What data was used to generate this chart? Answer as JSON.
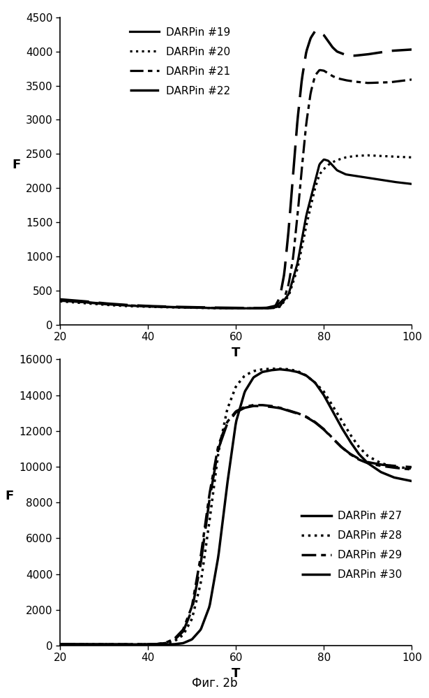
{
  "top_chart": {
    "xlabel": "T",
    "ylabel": "F",
    "xlim": [
      20,
      100
    ],
    "ylim": [
      0,
      4500
    ],
    "yticks": [
      0,
      500,
      1000,
      1500,
      2000,
      2500,
      3000,
      3500,
      4000,
      4500
    ],
    "xticks": [
      20,
      40,
      60,
      80,
      100
    ],
    "series": [
      {
        "label": "DARPin #19",
        "linestyle": "solid",
        "linewidth": 2.3,
        "color": "#000000",
        "points": [
          [
            20,
            350
          ],
          [
            25,
            330
          ],
          [
            30,
            300
          ],
          [
            35,
            280
          ],
          [
            40,
            265
          ],
          [
            45,
            255
          ],
          [
            50,
            248
          ],
          [
            55,
            242
          ],
          [
            60,
            238
          ],
          [
            65,
            238
          ],
          [
            68,
            240
          ],
          [
            70,
            270
          ],
          [
            72,
            450
          ],
          [
            74,
            900
          ],
          [
            76,
            1600
          ],
          [
            78,
            2100
          ],
          [
            79,
            2350
          ],
          [
            80,
            2420
          ],
          [
            81,
            2400
          ],
          [
            82,
            2330
          ],
          [
            83,
            2260
          ],
          [
            85,
            2200
          ],
          [
            87,
            2180
          ],
          [
            90,
            2150
          ],
          [
            93,
            2120
          ],
          [
            96,
            2090
          ],
          [
            100,
            2060
          ]
        ]
      },
      {
        "label": "DARPin #20",
        "linestyle": "dotted",
        "linewidth": 2.3,
        "color": "#000000",
        "points": [
          [
            20,
            340
          ],
          [
            25,
            315
          ],
          [
            30,
            290
          ],
          [
            35,
            270
          ],
          [
            40,
            260
          ],
          [
            45,
            252
          ],
          [
            50,
            246
          ],
          [
            55,
            240
          ],
          [
            60,
            237
          ],
          [
            65,
            237
          ],
          [
            68,
            238
          ],
          [
            70,
            260
          ],
          [
            72,
            420
          ],
          [
            74,
            820
          ],
          [
            76,
            1450
          ],
          [
            78,
            2000
          ],
          [
            79,
            2200
          ],
          [
            80,
            2280
          ],
          [
            81,
            2340
          ],
          [
            82,
            2380
          ],
          [
            83,
            2410
          ],
          [
            85,
            2450
          ],
          [
            87,
            2470
          ],
          [
            90,
            2480
          ],
          [
            93,
            2470
          ],
          [
            96,
            2460
          ],
          [
            100,
            2450
          ]
        ]
      },
      {
        "label": "DARPin #21",
        "linestyle": "custom_dashdot",
        "linewidth": 2.3,
        "color": "#000000",
        "dash_pattern": [
          6,
          2,
          2,
          2
        ],
        "points": [
          [
            20,
            360
          ],
          [
            25,
            335
          ],
          [
            30,
            305
          ],
          [
            35,
            284
          ],
          [
            40,
            268
          ],
          [
            45,
            258
          ],
          [
            50,
            250
          ],
          [
            55,
            244
          ],
          [
            60,
            240
          ],
          [
            65,
            238
          ],
          [
            67,
            240
          ],
          [
            69,
            260
          ],
          [
            71,
            380
          ],
          [
            72,
            600
          ],
          [
            73,
            980
          ],
          [
            74,
            1600
          ],
          [
            75,
            2300
          ],
          [
            76,
            2950
          ],
          [
            77,
            3400
          ],
          [
            78,
            3650
          ],
          [
            79,
            3730
          ],
          [
            80,
            3720
          ],
          [
            81,
            3680
          ],
          [
            82,
            3640
          ],
          [
            83,
            3610
          ],
          [
            85,
            3580
          ],
          [
            87,
            3560
          ],
          [
            90,
            3540
          ],
          [
            95,
            3550
          ],
          [
            100,
            3590
          ]
        ]
      },
      {
        "label": "DARPin #22",
        "linestyle": "custom_dash",
        "linewidth": 2.5,
        "color": "#000000",
        "dash_pattern": [
          12,
          4
        ],
        "points": [
          [
            20,
            370
          ],
          [
            25,
            345
          ],
          [
            30,
            312
          ],
          [
            35,
            288
          ],
          [
            40,
            272
          ],
          [
            45,
            262
          ],
          [
            50,
            255
          ],
          [
            55,
            249
          ],
          [
            60,
            244
          ],
          [
            65,
            242
          ],
          [
            67,
            246
          ],
          [
            69,
            275
          ],
          [
            70,
            400
          ],
          [
            71,
            750
          ],
          [
            72,
            1400
          ],
          [
            73,
            2200
          ],
          [
            74,
            3000
          ],
          [
            75,
            3600
          ],
          [
            76,
            4000
          ],
          [
            77,
            4200
          ],
          [
            78,
            4300
          ],
          [
            79,
            4290
          ],
          [
            80,
            4240
          ],
          [
            81,
            4150
          ],
          [
            82,
            4060
          ],
          [
            83,
            4000
          ],
          [
            85,
            3950
          ],
          [
            87,
            3940
          ],
          [
            90,
            3960
          ],
          [
            95,
            4010
          ],
          [
            100,
            4030
          ]
        ]
      }
    ]
  },
  "bottom_chart": {
    "xlabel": "T",
    "ylabel": "F",
    "xlim": [
      20,
      100
    ],
    "ylim": [
      0,
      16000
    ],
    "yticks": [
      0,
      2000,
      4000,
      6000,
      8000,
      10000,
      12000,
      14000,
      16000
    ],
    "xticks": [
      20,
      40,
      60,
      80,
      100
    ],
    "series": [
      {
        "label": "DARPin #27",
        "linestyle": "solid",
        "linewidth": 2.5,
        "color": "#000000",
        "points": [
          [
            20,
            80
          ],
          [
            25,
            75
          ],
          [
            30,
            72
          ],
          [
            35,
            70
          ],
          [
            40,
            68
          ],
          [
            44,
            68
          ],
          [
            46,
            80
          ],
          [
            48,
            140
          ],
          [
            50,
            350
          ],
          [
            52,
            900
          ],
          [
            54,
            2200
          ],
          [
            56,
            5000
          ],
          [
            58,
            9000
          ],
          [
            60,
            12500
          ],
          [
            62,
            14200
          ],
          [
            64,
            15000
          ],
          [
            66,
            15300
          ],
          [
            68,
            15400
          ],
          [
            70,
            15450
          ],
          [
            72,
            15400
          ],
          [
            74,
            15300
          ],
          [
            76,
            15100
          ],
          [
            78,
            14700
          ],
          [
            80,
            14000
          ],
          [
            82,
            13100
          ],
          [
            84,
            12200
          ],
          [
            86,
            11400
          ],
          [
            88,
            10700
          ],
          [
            90,
            10200
          ],
          [
            93,
            9700
          ],
          [
            96,
            9400
          ],
          [
            100,
            9200
          ]
        ]
      },
      {
        "label": "DARPin #28",
        "linestyle": "dotted",
        "linewidth": 2.5,
        "color": "#000000",
        "points": [
          [
            20,
            80
          ],
          [
            25,
            75
          ],
          [
            30,
            72
          ],
          [
            35,
            70
          ],
          [
            38,
            68
          ],
          [
            40,
            70
          ],
          [
            42,
            80
          ],
          [
            44,
            120
          ],
          [
            46,
            250
          ],
          [
            48,
            600
          ],
          [
            50,
            1500
          ],
          [
            52,
            3500
          ],
          [
            54,
            7000
          ],
          [
            56,
            10800
          ],
          [
            58,
            13200
          ],
          [
            60,
            14500
          ],
          [
            62,
            15100
          ],
          [
            64,
            15350
          ],
          [
            66,
            15450
          ],
          [
            68,
            15480
          ],
          [
            70,
            15480
          ],
          [
            72,
            15450
          ],
          [
            74,
            15350
          ],
          [
            76,
            15100
          ],
          [
            78,
            14700
          ],
          [
            80,
            14200
          ],
          [
            82,
            13400
          ],
          [
            84,
            12600
          ],
          [
            86,
            11800
          ],
          [
            88,
            11100
          ],
          [
            90,
            10600
          ],
          [
            93,
            10200
          ],
          [
            96,
            10000
          ],
          [
            100,
            9900
          ]
        ]
      },
      {
        "label": "DARPin #29",
        "linestyle": "custom_dashdot",
        "linewidth": 2.5,
        "color": "#000000",
        "dash_pattern": [
          6,
          2,
          2,
          2
        ],
        "points": [
          [
            20,
            80
          ],
          [
            25,
            75
          ],
          [
            30,
            72
          ],
          [
            35,
            70
          ],
          [
            38,
            68
          ],
          [
            40,
            72
          ],
          [
            42,
            90
          ],
          [
            44,
            160
          ],
          [
            46,
            380
          ],
          [
            48,
            900
          ],
          [
            50,
            2200
          ],
          [
            52,
            5000
          ],
          [
            54,
            8500
          ],
          [
            56,
            11200
          ],
          [
            58,
            12500
          ],
          [
            60,
            13100
          ],
          [
            62,
            13350
          ],
          [
            64,
            13450
          ],
          [
            66,
            13450
          ],
          [
            68,
            13400
          ],
          [
            70,
            13300
          ],
          [
            72,
            13150
          ],
          [
            74,
            13000
          ],
          [
            76,
            12800
          ],
          [
            78,
            12500
          ],
          [
            80,
            12100
          ],
          [
            82,
            11600
          ],
          [
            84,
            11100
          ],
          [
            86,
            10700
          ],
          [
            88,
            10400
          ],
          [
            90,
            10200
          ],
          [
            93,
            10050
          ],
          [
            96,
            9950
          ],
          [
            100,
            9850
          ]
        ]
      },
      {
        "label": "DARPin #30",
        "linestyle": "custom_dash",
        "linewidth": 2.5,
        "color": "#000000",
        "dash_pattern": [
          12,
          4
        ],
        "points": [
          [
            20,
            80
          ],
          [
            25,
            75
          ],
          [
            30,
            72
          ],
          [
            35,
            70
          ],
          [
            38,
            68
          ],
          [
            40,
            72
          ],
          [
            42,
            88
          ],
          [
            44,
            140
          ],
          [
            46,
            320
          ],
          [
            48,
            800
          ],
          [
            50,
            2000
          ],
          [
            52,
            4600
          ],
          [
            54,
            8200
          ],
          [
            56,
            11000
          ],
          [
            58,
            12400
          ],
          [
            60,
            13050
          ],
          [
            62,
            13300
          ],
          [
            64,
            13400
          ],
          [
            66,
            13400
          ],
          [
            68,
            13350
          ],
          [
            70,
            13280
          ],
          [
            72,
            13130
          ],
          [
            74,
            12980
          ],
          [
            76,
            12780
          ],
          [
            78,
            12480
          ],
          [
            80,
            12080
          ],
          [
            82,
            11580
          ],
          [
            84,
            11100
          ],
          [
            86,
            10720
          ],
          [
            88,
            10440
          ],
          [
            90,
            10260
          ],
          [
            93,
            10120
          ],
          [
            96,
            10050
          ],
          [
            100,
            9980
          ]
        ]
      }
    ]
  },
  "figure_label": "Фиг. 2b",
  "background_color": "#ffffff"
}
